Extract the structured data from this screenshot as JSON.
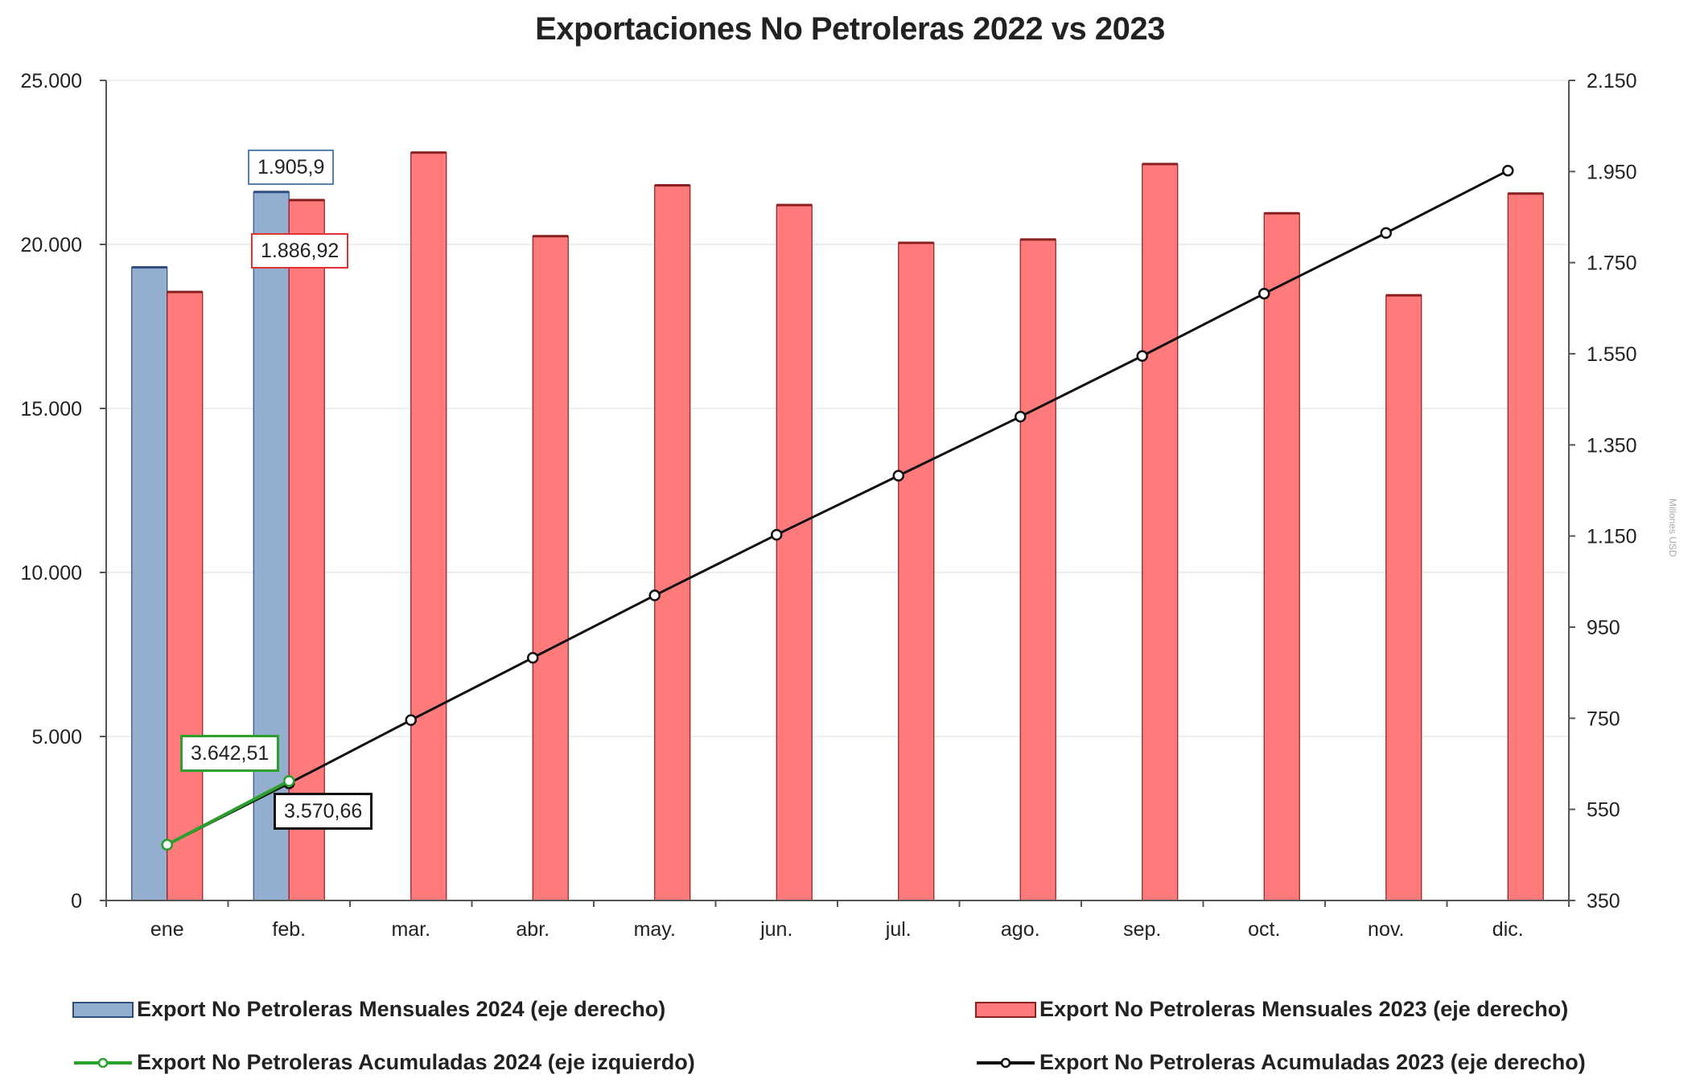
{
  "chart_data": {
    "type": "bar",
    "title": "Exportaciones No Petroleras 2022 vs 2023",
    "categories": [
      "ene",
      "feb.",
      "mar.",
      "abr.",
      "may.",
      "jun.",
      "jul.",
      "ago.",
      "sep.",
      "oct.",
      "nov.",
      "dic."
    ],
    "left_axis": {
      "min": 0,
      "max": 25000,
      "ticks": [
        "0",
        "5.000",
        "10.000",
        "15.000",
        "20.000",
        "25.000"
      ]
    },
    "right_axis": {
      "min": 350,
      "max": 2150,
      "ticks": [
        "350",
        "550",
        "750",
        "950",
        "1.150",
        "1.350",
        "1.550",
        "1.750",
        "1.950",
        "2.150"
      ],
      "label": "Millones USD"
    },
    "series": [
      {
        "name": "Export No Petroleras Mensuales 2024 (eje derecho)",
        "type": "bar",
        "axis": "left",
        "color": "#94aed0",
        "values": [
          19300,
          21600,
          null,
          null,
          null,
          null,
          null,
          null,
          null,
          null,
          null,
          null
        ]
      },
      {
        "name": "Export No Petroleras Mensuales 2023 (eje derecho)",
        "type": "bar",
        "axis": "left",
        "color": "#ff7b7b",
        "values": [
          18550,
          21350,
          22800,
          20250,
          21800,
          21200,
          20050,
          20150,
          22450,
          20950,
          18450,
          21550
        ]
      },
      {
        "name": "Export No Petroleras Acumuladas 2024 (eje izquierdo)",
        "type": "line",
        "axis": "left",
        "color": "#2ca02c",
        "values": [
          1700,
          3642.51,
          null,
          null,
          null,
          null,
          null,
          null,
          null,
          null,
          null,
          null
        ]
      },
      {
        "name": "Export No Petroleras Acumuladas 2023 (eje derecho)",
        "type": "line",
        "axis": "left",
        "color": "#111111",
        "values": [
          1700,
          3570.66,
          5500,
          7400,
          9300,
          11150,
          12950,
          14750,
          16600,
          18500,
          20350,
          22250
        ]
      }
    ],
    "annotations": [
      {
        "text": "1.905,9",
        "border": "#5a7fb5"
      },
      {
        "text": "1.886,92",
        "border": "#e03030"
      },
      {
        "text": "3.642,51",
        "border": "#2ca02c"
      },
      {
        "text": "3.570,66",
        "border": "#111111"
      }
    ],
    "legend_placement": "bottom",
    "grid": true
  }
}
